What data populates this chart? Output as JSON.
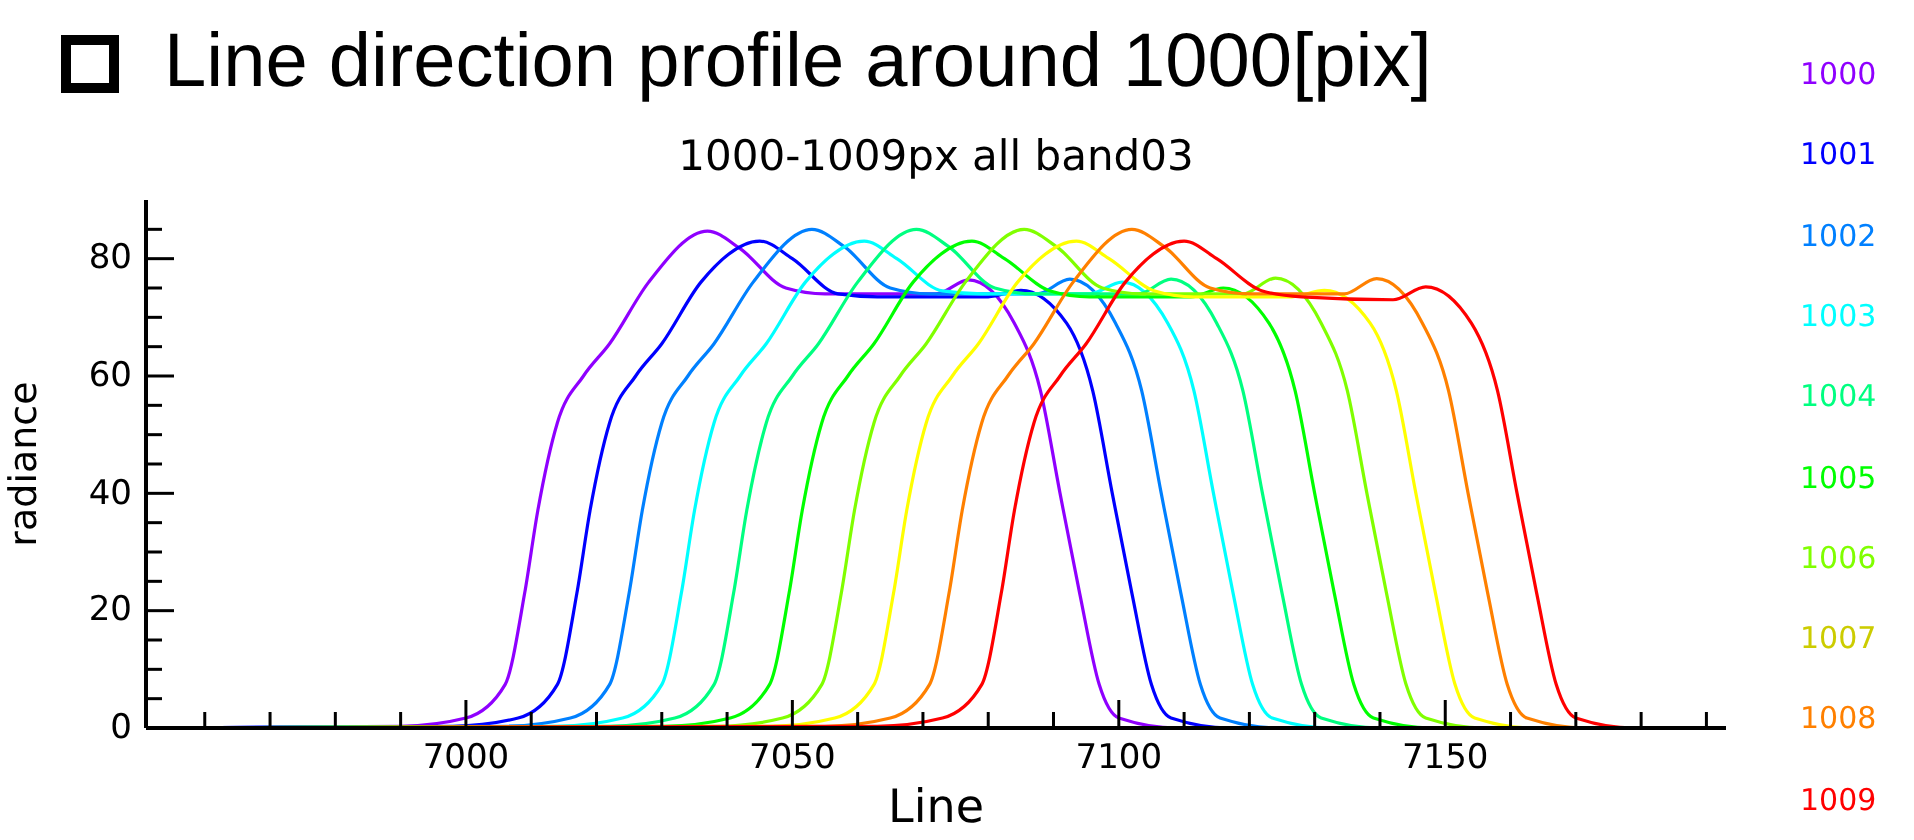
{
  "chart_data": {
    "type": "line",
    "title": "Line direction profile around 1000[pix]",
    "subtitle": "1000-1009px all band03",
    "xlabel": "Line",
    "ylabel": "radiance",
    "xlim": [
      6951,
      7193
    ],
    "ylim": [
      0,
      90
    ],
    "xticks": [
      {
        "value": 6960,
        "label": null
      },
      {
        "value": 6970,
        "label": null
      },
      {
        "value": 6980,
        "label": null
      },
      {
        "value": 6990,
        "label": null
      },
      7000,
      {
        "value": 7010,
        "label": null
      },
      {
        "value": 7020,
        "label": null
      },
      {
        "value": 7030,
        "label": null
      },
      {
        "value": 7040,
        "label": null
      },
      7050,
      {
        "value": 7060,
        "label": null
      },
      {
        "value": 7070,
        "label": null
      },
      {
        "value": 7080,
        "label": null
      },
      {
        "value": 7090,
        "label": null
      },
      7100,
      {
        "value": 7110,
        "label": null
      },
      {
        "value": 7120,
        "label": null
      },
      {
        "value": 7130,
        "label": null
      },
      {
        "value": 7140,
        "label": null
      },
      7150,
      {
        "value": 7160,
        "label": null
      },
      {
        "value": 7170,
        "label": null
      },
      {
        "value": 7180,
        "label": null
      },
      {
        "value": 7190,
        "label": null
      }
    ],
    "yticks": [
      0,
      {
        "value": 5,
        "label": null
      },
      {
        "value": 10,
        "label": null
      },
      {
        "value": 15,
        "label": null
      },
      20,
      {
        "value": 25,
        "label": null
      },
      {
        "value": 30,
        "label": null
      },
      {
        "value": 35,
        "label": null
      },
      40,
      {
        "value": 45,
        "label": null
      },
      {
        "value": 50,
        "label": null
      },
      {
        "value": 55,
        "label": null
      },
      60,
      {
        "value": 65,
        "label": null
      },
      {
        "value": 70,
        "label": null
      },
      {
        "value": 75,
        "label": null
      },
      80,
      {
        "value": 85,
        "label": null
      }
    ],
    "grid": false,
    "legend": "right",
    "marker": "none",
    "line_style": "solid",
    "series": [
      {
        "name": "1000",
        "color": "#8f00ff",
        "x": [
          6951,
          6990,
          7000,
          7006,
          7009,
          7011,
          7014,
          7018,
          7022,
          7028,
          7037,
          7042,
          7049,
          7055,
          7072,
          7077,
          7084,
          7088,
          7091,
          7094,
          7097,
          7100,
          7109,
          7193
        ],
        "values": [
          0,
          0.3,
          1.7,
          7.4,
          23,
          37,
          52,
          60,
          65.5,
          76,
          84.7,
          81.7,
          75,
          74,
          74,
          76.4,
          69,
          57.5,
          40,
          23,
          7.4,
          1.7,
          0,
          0
        ]
      },
      {
        "name": "1001",
        "color": "#0000ff",
        "x": [
          6951,
          6998,
          7008,
          7014,
          7017,
          7019,
          7022,
          7026,
          7030,
          7036,
          7045,
          7050,
          7057,
          7063,
          7080,
          7085,
          7092,
          7096,
          7099,
          7102,
          7105,
          7108,
          7117,
          7193
        ],
        "values": [
          0,
          0.3,
          1.7,
          7.4,
          23,
          37,
          52,
          60,
          65.5,
          76,
          83,
          80,
          74,
          73.5,
          73.5,
          74.6,
          69,
          57.5,
          40,
          23,
          7.4,
          1.7,
          0,
          0
        ]
      },
      {
        "name": "1002",
        "color": "#0080ff",
        "x": [
          6951,
          7006,
          7016,
          7022,
          7025,
          7027,
          7030,
          7034,
          7038,
          7044,
          7053,
          7058,
          7065,
          7071,
          7087.5,
          7092.5,
          7099.5,
          7103.5,
          7106.5,
          7109.5,
          7112.5,
          7115.5,
          7124.5,
          7193
        ],
        "values": [
          0,
          0.3,
          1.7,
          7.4,
          23,
          37,
          52,
          60,
          65.5,
          76,
          85,
          82,
          75,
          74,
          74,
          76.5,
          69,
          57.5,
          40,
          23,
          7.4,
          1.7,
          0,
          0
        ]
      },
      {
        "name": "1003",
        "color": "#00ffff",
        "x": [
          6951,
          7014,
          7024,
          7030,
          7033,
          7035,
          7038,
          7042,
          7046,
          7052,
          7061,
          7066,
          7073,
          7079,
          7095.5,
          7100.5,
          7107.5,
          7111.5,
          7114.5,
          7117.5,
          7120.5,
          7123.5,
          7132.5,
          7193
        ],
        "values": [
          0,
          0.3,
          1.7,
          7.4,
          23,
          37,
          52,
          60,
          65.5,
          76,
          83,
          80,
          74.5,
          74,
          74,
          76,
          69,
          57.5,
          40,
          23,
          7.4,
          1.7,
          0,
          0
        ]
      },
      {
        "name": "1004",
        "color": "#00ff80",
        "x": [
          6951,
          7022,
          7032,
          7038,
          7041,
          7043,
          7046,
          7050,
          7054,
          7060,
          7069,
          7074,
          7081,
          7087,
          7103,
          7108,
          7115,
          7119,
          7122,
          7125,
          7128,
          7131,
          7140,
          7193
        ],
        "values": [
          0,
          0.3,
          1.7,
          7.4,
          23,
          37,
          52,
          60,
          65.5,
          76,
          85,
          82,
          75,
          74,
          74,
          76.5,
          69,
          57.5,
          40,
          23,
          7.4,
          1.7,
          0,
          0
        ]
      },
      {
        "name": "1005",
        "color": "#00ff00",
        "x": [
          6951,
          7030.5,
          7040.5,
          7046.5,
          7049.5,
          7051.5,
          7054.5,
          7058.5,
          7062.5,
          7068.5,
          7077.5,
          7082.5,
          7089.5,
          7095.5,
          7111,
          7116,
          7123,
          7127,
          7130,
          7133,
          7136,
          7139,
          7148,
          7193
        ],
        "values": [
          0,
          0.3,
          1.7,
          7.4,
          23,
          37,
          52,
          60,
          65.5,
          76,
          83,
          80,
          74.5,
          73.5,
          73.5,
          75,
          69,
          57.5,
          40,
          23,
          7.4,
          1.7,
          0,
          0
        ]
      },
      {
        "name": "1006",
        "color": "#80ff00",
        "x": [
          6951,
          7038.5,
          7048.5,
          7054.5,
          7057.5,
          7059.5,
          7062.5,
          7066.5,
          7070.5,
          7076.5,
          7085.5,
          7090.5,
          7097.5,
          7103.5,
          7119,
          7124,
          7131,
          7135,
          7138,
          7141,
          7144,
          7147,
          7156,
          7193
        ],
        "values": [
          0,
          0.3,
          1.7,
          7.4,
          23,
          37,
          52,
          60,
          65.5,
          76,
          85,
          82,
          75,
          74,
          74,
          76.7,
          69,
          57.5,
          40,
          23,
          7.4,
          1.7,
          0,
          0
        ]
      },
      {
        "name": "1007",
        "color": "#ffff00",
        "x": [
          6951,
          7046.5,
          7056.5,
          7062.5,
          7065.5,
          7067.5,
          7070.5,
          7074.5,
          7078.5,
          7084.5,
          7093.5,
          7098.5,
          7105.5,
          7111.5,
          7126.5,
          7131.5,
          7138.5,
          7142.5,
          7145.5,
          7148.5,
          7151.5,
          7154.5,
          7163.5,
          7193
        ],
        "values": [
          0,
          0.3,
          1.7,
          7.4,
          23,
          37,
          52,
          60,
          65.5,
          76,
          83,
          80,
          74.5,
          73.5,
          73.5,
          74.6,
          69,
          57.5,
          40,
          23,
          7.4,
          1.7,
          0,
          0
        ]
      },
      {
        "name": "1008",
        "color": "#ff8000",
        "x": [
          6951,
          7055,
          7065,
          7071,
          7074,
          7076,
          7079,
          7083,
          7087,
          7093,
          7102,
          7107,
          7114,
          7120,
          7134.5,
          7139.5,
          7146.5,
          7150.5,
          7153.5,
          7156.5,
          7159.5,
          7162.5,
          7171.5,
          7193
        ],
        "values": [
          0,
          0.3,
          1.7,
          7.4,
          23,
          37,
          52,
          60,
          65.5,
          76,
          85,
          82,
          75,
          74,
          74,
          76.6,
          69,
          57.5,
          40,
          23,
          7.4,
          1.7,
          0,
          0
        ]
      },
      {
        "name": "1009",
        "color": "#ff0000",
        "x": [
          6951,
          7063,
          7073,
          7079,
          7082,
          7084,
          7087,
          7091,
          7095,
          7101,
          7110,
          7115,
          7122,
          7128,
          7142,
          7147,
          7154,
          7158,
          7161,
          7164,
          7167,
          7170,
          7179,
          7193
        ],
        "values": [
          0,
          0.3,
          1.7,
          7.4,
          23,
          37,
          52,
          60,
          65.5,
          76,
          83,
          80,
          74.5,
          73.5,
          73,
          75.2,
          69,
          57.5,
          40,
          23,
          7.4,
          1.7,
          0,
          0
        ]
      }
    ]
  }
}
